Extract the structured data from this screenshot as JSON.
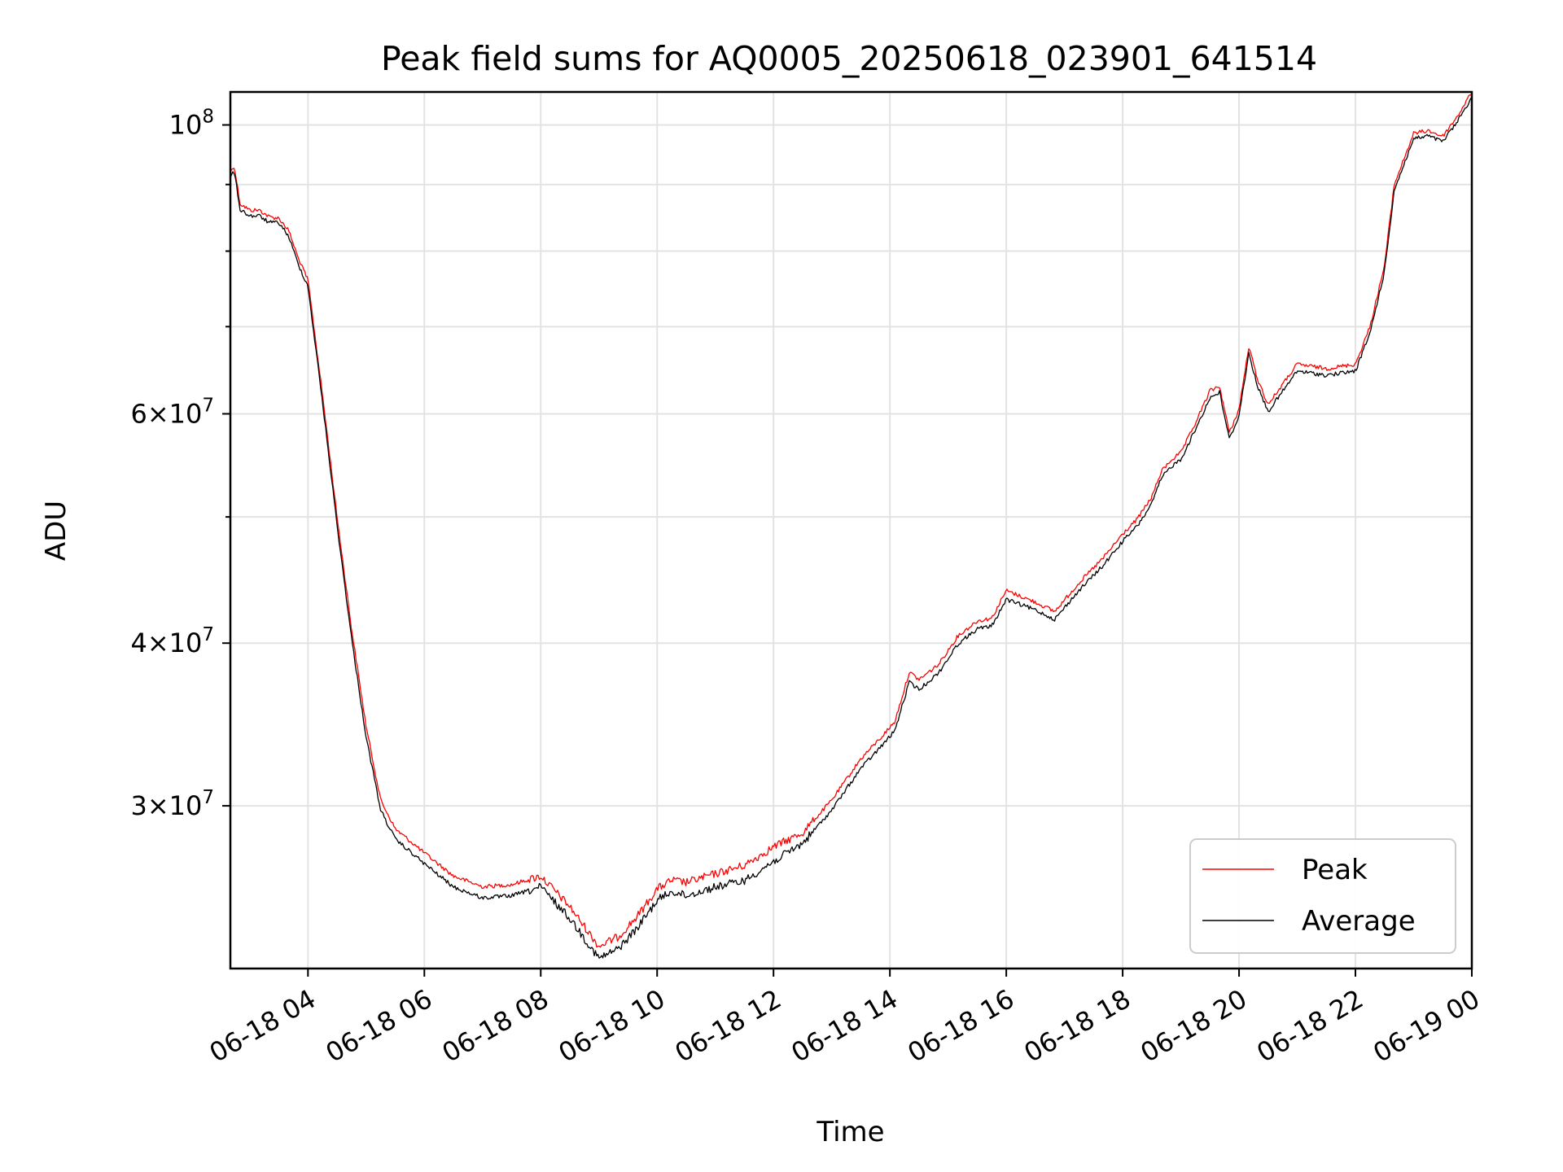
{
  "chart_data": {
    "type": "line",
    "title": "Peak field sums for AQ0005_20250618_023901_641514",
    "xlabel": "Time",
    "ylabel": "ADU",
    "x_range": [
      "2025-06-18 02:40",
      "2025-06-19 00:00"
    ],
    "y_range": [
      22500000,
      106000000
    ],
    "y_scale": "log",
    "grid": true,
    "legend_position": "lower-right",
    "x_ticks": [
      {
        "time": "2025-06-18 04:00",
        "label": "06-18 04"
      },
      {
        "time": "2025-06-18 06:00",
        "label": "06-18 06"
      },
      {
        "time": "2025-06-18 08:00",
        "label": "06-18 08"
      },
      {
        "time": "2025-06-18 10:00",
        "label": "06-18 10"
      },
      {
        "time": "2025-06-18 12:00",
        "label": "06-18 12"
      },
      {
        "time": "2025-06-18 14:00",
        "label": "06-18 14"
      },
      {
        "time": "2025-06-18 16:00",
        "label": "06-18 16"
      },
      {
        "time": "2025-06-18 18:00",
        "label": "06-18 18"
      },
      {
        "time": "2025-06-18 20:00",
        "label": "06-18 20"
      },
      {
        "time": "2025-06-18 22:00",
        "label": "06-18 22"
      },
      {
        "time": "2025-06-19 00:00",
        "label": "06-19 00"
      }
    ],
    "y_major_ticks": [
      {
        "value": 30000000,
        "mantissa": "3",
        "base": "10",
        "exp": "7"
      },
      {
        "value": 40000000,
        "mantissa": "4",
        "base": "10",
        "exp": "7"
      },
      {
        "value": 60000000,
        "mantissa": "6",
        "base": "10",
        "exp": "7"
      },
      {
        "value": 100000000,
        "mantissa": "",
        "base": "10",
        "exp": "8"
      }
    ],
    "y_minor_gridlines": [
      50000000,
      70000000,
      80000000,
      90000000
    ],
    "series": [
      {
        "name": "Peak",
        "color": "#ff0000",
        "x": [
          "2025-06-18 02:40",
          "2025-06-18 02:44",
          "2025-06-18 02:50",
          "2025-06-18 03:00",
          "2025-06-18 03:10",
          "2025-06-18 03:20",
          "2025-06-18 03:30",
          "2025-06-18 03:40",
          "2025-06-18 03:50",
          "2025-06-18 04:00",
          "2025-06-18 04:15",
          "2025-06-18 04:30",
          "2025-06-18 04:45",
          "2025-06-18 05:00",
          "2025-06-18 05:15",
          "2025-06-18 05:30",
          "2025-06-18 05:45",
          "2025-06-18 06:00",
          "2025-06-18 06:30",
          "2025-06-18 07:00",
          "2025-06-18 07:30",
          "2025-06-18 08:00",
          "2025-06-18 08:30",
          "2025-06-18 09:00",
          "2025-06-18 09:20",
          "2025-06-18 09:40",
          "2025-06-18 10:00",
          "2025-06-18 10:15",
          "2025-06-18 10:30",
          "2025-06-18 11:00",
          "2025-06-18 11:30",
          "2025-06-18 12:00",
          "2025-06-18 12:30",
          "2025-06-18 13:00",
          "2025-06-18 13:30",
          "2025-06-18 13:50",
          "2025-06-18 14:05",
          "2025-06-18 14:20",
          "2025-06-18 14:30",
          "2025-06-18 14:50",
          "2025-06-18 15:10",
          "2025-06-18 15:30",
          "2025-06-18 15:45",
          "2025-06-18 16:00",
          "2025-06-18 16:30",
          "2025-06-18 16:50",
          "2025-06-18 17:15",
          "2025-06-18 17:40",
          "2025-06-18 18:00",
          "2025-06-18 18:15",
          "2025-06-18 18:30",
          "2025-06-18 18:40",
          "2025-06-18 18:50",
          "2025-06-18 19:00",
          "2025-06-18 19:15",
          "2025-06-18 19:30",
          "2025-06-18 19:40",
          "2025-06-18 19:50",
          "2025-06-18 20:00",
          "2025-06-18 20:10",
          "2025-06-18 20:20",
          "2025-06-18 20:30",
          "2025-06-18 21:00",
          "2025-06-18 21:30",
          "2025-06-18 22:00",
          "2025-06-18 22:15",
          "2025-06-18 22:30",
          "2025-06-18 22:40",
          "2025-06-18 23:00",
          "2025-06-18 23:15",
          "2025-06-18 23:30",
          "2025-06-18 23:45",
          "2025-06-19 00:00"
        ],
        "y": [
          92000000,
          93000000,
          87000000,
          86000000,
          86000000,
          85000000,
          84800000,
          83000000,
          79000000,
          76000000,
          62000000,
          50000000,
          41000000,
          34500000,
          30300000,
          28800000,
          28200000,
          27600000,
          26500000,
          26000000,
          26100000,
          26500000,
          25100000,
          23400000,
          23800000,
          24700000,
          25900000,
          26300000,
          26200000,
          26600000,
          27000000,
          27900000,
          28600000,
          30300000,
          32600000,
          33800000,
          34800000,
          38000000,
          37500000,
          38500000,
          40500000,
          41600000,
          41800000,
          43900000,
          43000000,
          42300000,
          44500000,
          46500000,
          48500000,
          49800000,
          51800000,
          54200000,
          55300000,
          56000000,
          59000000,
          62500000,
          63000000,
          58000000,
          60500000,
          67500000,
          63500000,
          61000000,
          65500000,
          65000000,
          65500000,
          70000000,
          78000000,
          90000000,
          98500000,
          99000000,
          98000000,
          101500000,
          106000000
        ]
      },
      {
        "name": "Average",
        "color": "#000000",
        "x": [
          "2025-06-18 02:40",
          "2025-06-18 02:44",
          "2025-06-18 02:50",
          "2025-06-18 03:00",
          "2025-06-18 03:10",
          "2025-06-18 03:20",
          "2025-06-18 03:30",
          "2025-06-18 03:40",
          "2025-06-18 03:50",
          "2025-06-18 04:00",
          "2025-06-18 04:15",
          "2025-06-18 04:30",
          "2025-06-18 04:45",
          "2025-06-18 05:00",
          "2025-06-18 05:15",
          "2025-06-18 05:30",
          "2025-06-18 05:45",
          "2025-06-18 06:00",
          "2025-06-18 06:30",
          "2025-06-18 07:00",
          "2025-06-18 07:30",
          "2025-06-18 08:00",
          "2025-06-18 08:30",
          "2025-06-18 09:00",
          "2025-06-18 09:20",
          "2025-06-18 09:40",
          "2025-06-18 10:00",
          "2025-06-18 10:15",
          "2025-06-18 10:30",
          "2025-06-18 11:00",
          "2025-06-18 11:30",
          "2025-06-18 12:00",
          "2025-06-18 12:30",
          "2025-06-18 13:00",
          "2025-06-18 13:30",
          "2025-06-18 13:50",
          "2025-06-18 14:05",
          "2025-06-18 14:20",
          "2025-06-18 14:30",
          "2025-06-18 14:50",
          "2025-06-18 15:10",
          "2025-06-18 15:30",
          "2025-06-18 15:45",
          "2025-06-18 16:00",
          "2025-06-18 16:30",
          "2025-06-18 16:50",
          "2025-06-18 17:15",
          "2025-06-18 17:40",
          "2025-06-18 18:00",
          "2025-06-18 18:15",
          "2025-06-18 18:30",
          "2025-06-18 18:40",
          "2025-06-18 18:50",
          "2025-06-18 19:00",
          "2025-06-18 19:15",
          "2025-06-18 19:30",
          "2025-06-18 19:40",
          "2025-06-18 19:50",
          "2025-06-18 20:00",
          "2025-06-18 20:10",
          "2025-06-18 20:20",
          "2025-06-18 20:30",
          "2025-06-18 21:00",
          "2025-06-18 21:30",
          "2025-06-18 22:00",
          "2025-06-18 22:15",
          "2025-06-18 22:30",
          "2025-06-18 22:40",
          "2025-06-18 23:00",
          "2025-06-18 23:15",
          "2025-06-18 23:30",
          "2025-06-18 23:45",
          "2025-06-19 00:00"
        ],
        "y": [
          91500000,
          92500000,
          86500000,
          85500000,
          85500000,
          84500000,
          84500000,
          82500000,
          78500000,
          75500000,
          61500000,
          49500000,
          40500000,
          34000000,
          29900000,
          28400000,
          27800000,
          27200000,
          26100000,
          25600000,
          25700000,
          26100000,
          24700000,
          23000000,
          23400000,
          24300000,
          25500000,
          25900000,
          25700000,
          26100000,
          26400000,
          27300000,
          28200000,
          29900000,
          32200000,
          33400000,
          34400000,
          37500000,
          37000000,
          38100000,
          40100000,
          41200000,
          41400000,
          43400000,
          42600000,
          41900000,
          44100000,
          46100000,
          48100000,
          49400000,
          51400000,
          53800000,
          54900000,
          55600000,
          58600000,
          62000000,
          62600000,
          57600000,
          60100000,
          67000000,
          63000000,
          60500000,
          65000000,
          64500000,
          65000000,
          69500000,
          77500000,
          89500000,
          98000000,
          98500000,
          97500000,
          101000000,
          105500000
        ]
      }
    ]
  }
}
